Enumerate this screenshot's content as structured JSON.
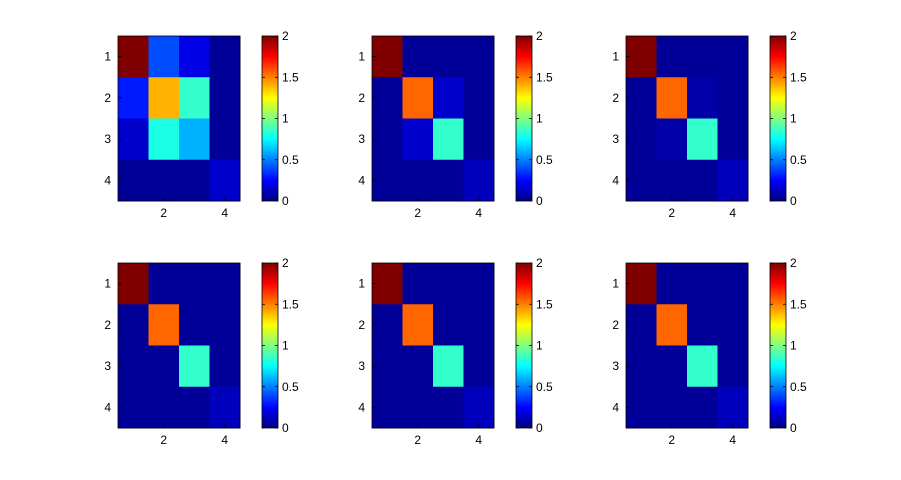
{
  "chart_data": [
    {
      "type": "heatmap",
      "colormap": "jet",
      "clim": [
        0,
        2
      ],
      "x_ticks": [
        "2",
        "4"
      ],
      "y_ticks": [
        "1",
        "2",
        "3",
        "4"
      ],
      "colorbar_ticks": [
        "0",
        "0.5",
        "1",
        "1.5",
        "2"
      ],
      "values": [
        [
          2.0,
          0.4,
          0.2,
          0.05
        ],
        [
          0.3,
          1.4,
          0.85,
          0.05
        ],
        [
          0.15,
          0.8,
          0.6,
          0.05
        ],
        [
          0.05,
          0.05,
          0.05,
          0.15
        ]
      ]
    },
    {
      "type": "heatmap",
      "colormap": "jet",
      "clim": [
        0,
        2
      ],
      "x_ticks": [
        "2",
        "4"
      ],
      "y_ticks": [
        "1",
        "2",
        "3",
        "4"
      ],
      "colorbar_ticks": [
        "0",
        "0.5",
        "1",
        "1.5",
        "2"
      ],
      "values": [
        [
          2.0,
          0.05,
          0.05,
          0.05
        ],
        [
          0.05,
          1.55,
          0.15,
          0.05
        ],
        [
          0.05,
          0.15,
          0.85,
          0.05
        ],
        [
          0.05,
          0.05,
          0.05,
          0.12
        ]
      ]
    },
    {
      "type": "heatmap",
      "colormap": "jet",
      "clim": [
        0,
        2
      ],
      "x_ticks": [
        "2",
        "4"
      ],
      "y_ticks": [
        "1",
        "2",
        "3",
        "4"
      ],
      "colorbar_ticks": [
        "0",
        "0.5",
        "1",
        "1.5",
        "2"
      ],
      "values": [
        [
          2.0,
          0.05,
          0.05,
          0.05
        ],
        [
          0.05,
          1.55,
          0.08,
          0.05
        ],
        [
          0.05,
          0.08,
          0.85,
          0.05
        ],
        [
          0.05,
          0.05,
          0.05,
          0.12
        ]
      ]
    },
    {
      "type": "heatmap",
      "colormap": "jet",
      "clim": [
        0,
        2
      ],
      "x_ticks": [
        "2",
        "4"
      ],
      "y_ticks": [
        "1",
        "2",
        "3",
        "4"
      ],
      "colorbar_ticks": [
        "0",
        "0.5",
        "1",
        "1.5",
        "2"
      ],
      "values": [
        [
          2.0,
          0.05,
          0.05,
          0.05
        ],
        [
          0.05,
          1.55,
          0.05,
          0.05
        ],
        [
          0.05,
          0.05,
          0.85,
          0.05
        ],
        [
          0.05,
          0.05,
          0.05,
          0.12
        ]
      ]
    },
    {
      "type": "heatmap",
      "colormap": "jet",
      "clim": [
        0,
        2
      ],
      "x_ticks": [
        "2",
        "4"
      ],
      "y_ticks": [
        "1",
        "2",
        "3",
        "4"
      ],
      "colorbar_ticks": [
        "0",
        "0.5",
        "1",
        "1.5",
        "2"
      ],
      "values": [
        [
          2.0,
          0.05,
          0.05,
          0.05
        ],
        [
          0.05,
          1.55,
          0.05,
          0.05
        ],
        [
          0.05,
          0.05,
          0.85,
          0.05
        ],
        [
          0.05,
          0.05,
          0.05,
          0.12
        ]
      ]
    },
    {
      "type": "heatmap",
      "colormap": "jet",
      "clim": [
        0,
        2
      ],
      "x_ticks": [
        "2",
        "4"
      ],
      "y_ticks": [
        "1",
        "2",
        "3",
        "4"
      ],
      "colorbar_ticks": [
        "0",
        "0.5",
        "1",
        "1.5",
        "2"
      ],
      "values": [
        [
          2.0,
          0.05,
          0.05,
          0.05
        ],
        [
          0.05,
          1.55,
          0.05,
          0.05
        ],
        [
          0.05,
          0.05,
          0.85,
          0.05
        ],
        [
          0.05,
          0.05,
          0.05,
          0.12
        ]
      ]
    }
  ]
}
